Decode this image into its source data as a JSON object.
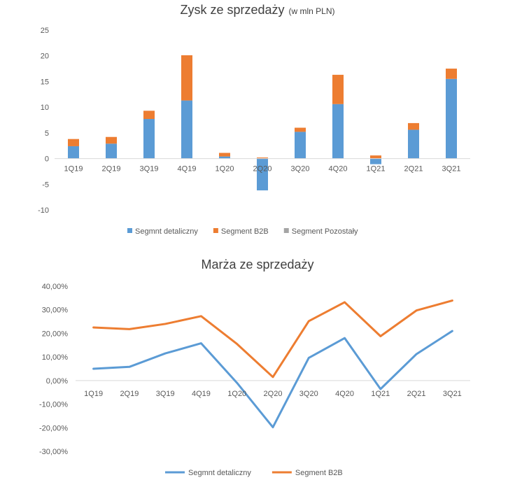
{
  "chart_data": [
    {
      "type": "bar",
      "stacked": true,
      "title": "Zysk ze sprzedaży",
      "subtitle": "(w mln PLN)",
      "categories": [
        "1Q19",
        "2Q19",
        "3Q19",
        "4Q19",
        "1Q20",
        "2Q20",
        "3Q20",
        "4Q20",
        "1Q21",
        "2Q21",
        "3Q21"
      ],
      "ylim": [
        -10,
        25
      ],
      "yticks": [
        "25",
        "20",
        "15",
        "10",
        "5",
        "0",
        "-5",
        "-10"
      ],
      "grid": false,
      "legend_position": "bottom",
      "series": [
        {
          "name": "Segmnt detaliczny",
          "color": "#5B9BD5",
          "values": [
            2.4,
            2.9,
            7.7,
            11.3,
            0.4,
            -6.2,
            5.2,
            10.6,
            -1.1,
            5.6,
            15.5
          ]
        },
        {
          "name": "Segment B2B",
          "color": "#ED7D31",
          "values": [
            1.4,
            1.3,
            1.6,
            8.8,
            0.7,
            0.2,
            0.8,
            5.7,
            0.6,
            1.3,
            2.0
          ]
        },
        {
          "name": "Segment Pozostały",
          "color": "#A5A5A5",
          "values": [
            0,
            0,
            0,
            0,
            0,
            0,
            0,
            0,
            0,
            0,
            0
          ]
        }
      ]
    },
    {
      "type": "line",
      "title": "Marża ze sprzedaży",
      "categories": [
        "1Q19",
        "2Q19",
        "3Q19",
        "4Q19",
        "1Q20",
        "2Q20",
        "3Q20",
        "4Q20",
        "1Q21",
        "2Q21",
        "3Q21"
      ],
      "ylim": [
        -30,
        40
      ],
      "yticks": [
        "40,00%",
        "30,00%",
        "20,00%",
        "10,00%",
        "0,00%",
        "-10,00%",
        "-20,00%",
        "-30,00%"
      ],
      "grid": false,
      "legend_position": "bottom",
      "series": [
        {
          "name": "Segmnt detaliczny",
          "color": "#5B9BD5",
          "values": [
            5.0,
            5.8,
            11.5,
            15.8,
            -1.0,
            -19.8,
            9.6,
            18.0,
            -3.6,
            11.2,
            21.0
          ]
        },
        {
          "name": "Segment B2B",
          "color": "#ED7D31",
          "values": [
            22.5,
            21.8,
            24.0,
            27.3,
            15.5,
            1.5,
            25.2,
            33.2,
            18.8,
            29.7,
            33.9
          ]
        }
      ]
    }
  ]
}
